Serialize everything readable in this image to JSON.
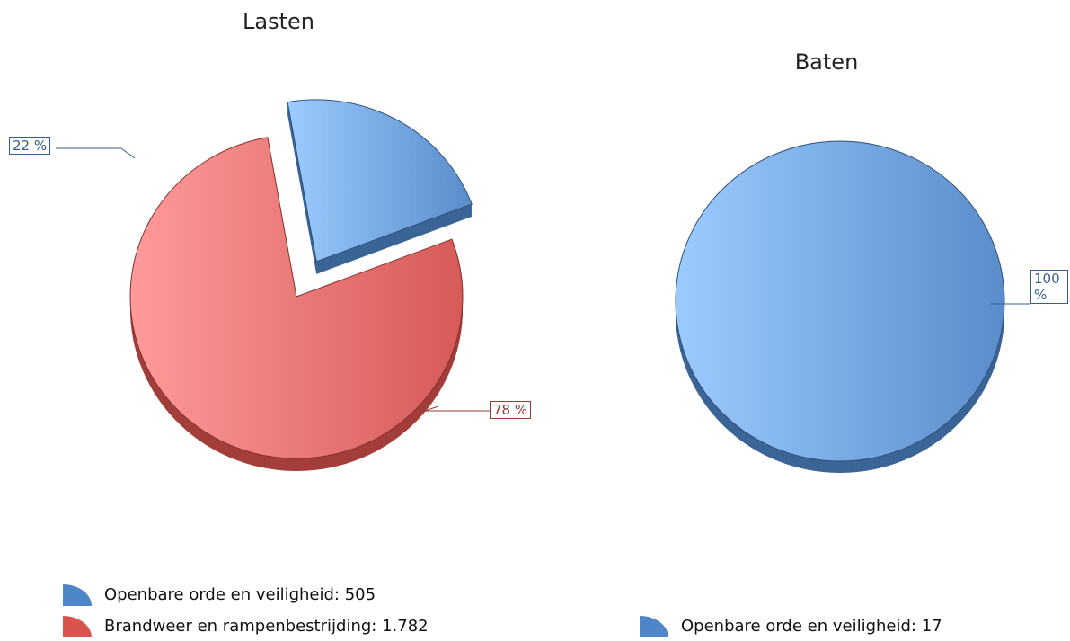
{
  "chart_data": [
    {
      "type": "pie",
      "title": "Lasten",
      "categories": [
        "Openbare orde en veiligheid",
        "Brandweer en rampenbestrijding"
      ],
      "values": [
        22,
        78
      ],
      "value_labels": [
        "22 %",
        "78 %"
      ],
      "colors": [
        "#4f86c8",
        "#d9534f"
      ],
      "legend": [
        "Openbare orde en veiligheid: 505",
        "Brandweer en rampenbestrijding: 1.782"
      ]
    },
    {
      "type": "pie",
      "title": "Baten",
      "categories": [
        "Openbare orde en veiligheid"
      ],
      "values": [
        100
      ],
      "value_labels": [
        "100 %"
      ],
      "colors": [
        "#4f86c8"
      ],
      "legend": [
        "Openbare orde en veiligheid: 17"
      ]
    }
  ]
}
